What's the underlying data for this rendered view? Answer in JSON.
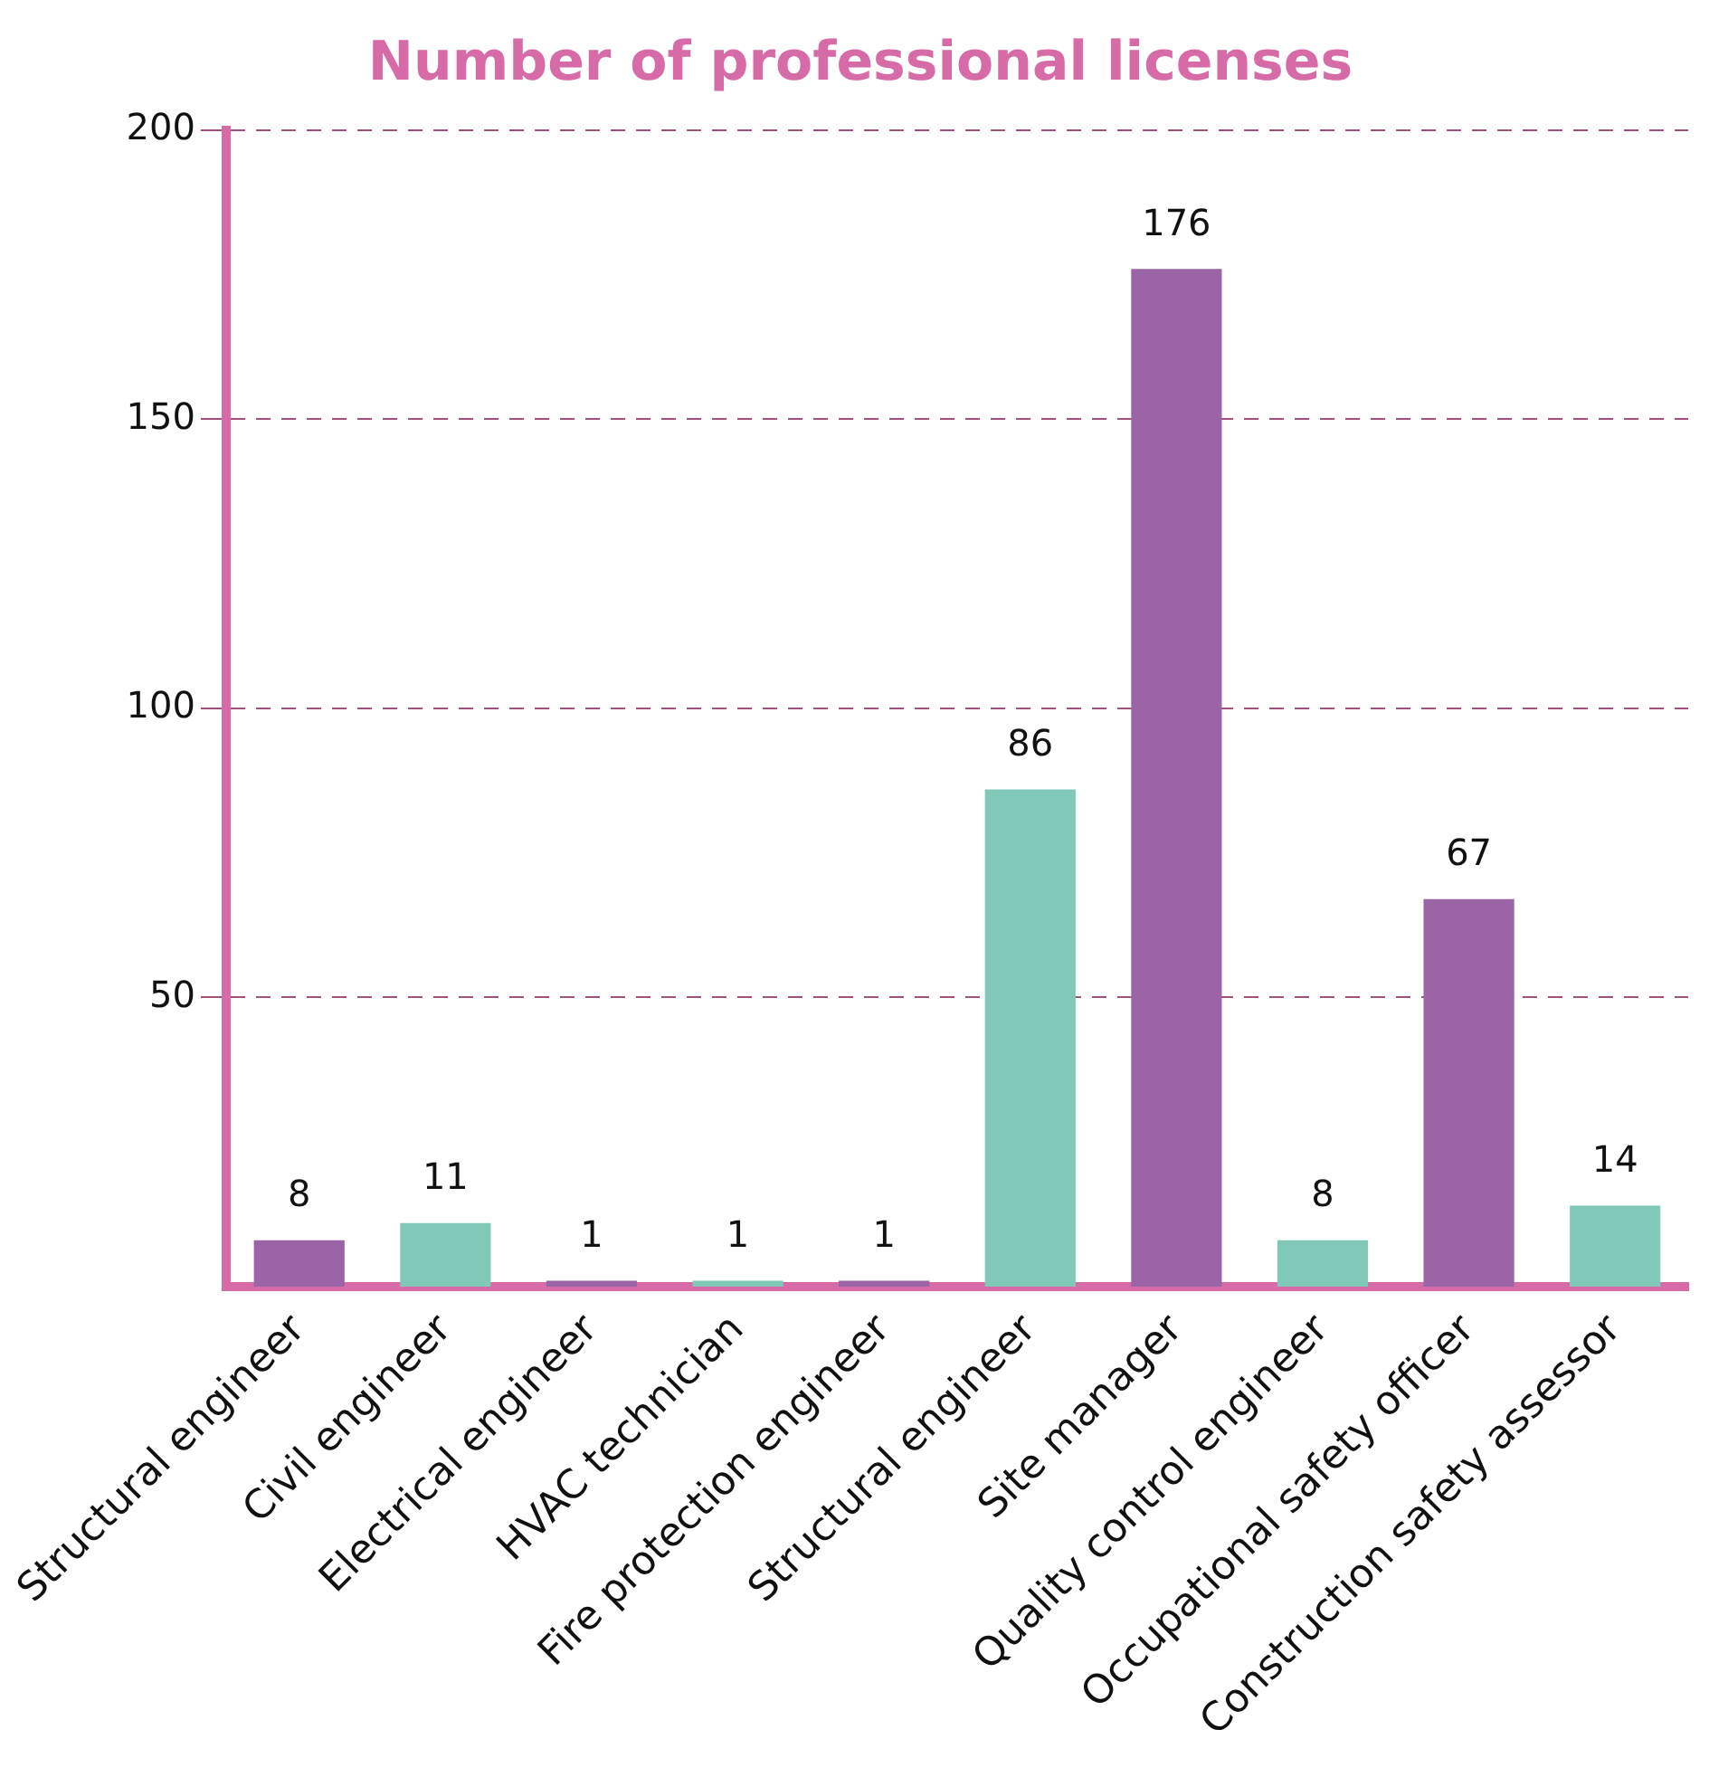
{
  "chart_data": {
    "type": "bar",
    "title": "Number of professional licenses",
    "categories": [
      "Structural engineer",
      "Civil engineer",
      "Electrical engineer",
      "HVAC technician",
      "Fire protection engineer",
      "Structural engineer",
      "Site manager",
      "Quality control engineer",
      "Occupational safety officer",
      "Construction safety assessor"
    ],
    "values": [
      8,
      11,
      1,
      1,
      1,
      86,
      176,
      8,
      67,
      14
    ],
    "colors": [
      "#9b64a6",
      "#80c9b9",
      "#9b64a6",
      "#80c9b9",
      "#9b64a6",
      "#80c9b9",
      "#9b64a6",
      "#80c9b9",
      "#9b64a6",
      "#80c9b9"
    ],
    "ylim": [
      0,
      200
    ],
    "yticks": [
      50,
      100,
      150,
      200
    ],
    "grid": "y",
    "legend": false,
    "data_labels": true
  }
}
